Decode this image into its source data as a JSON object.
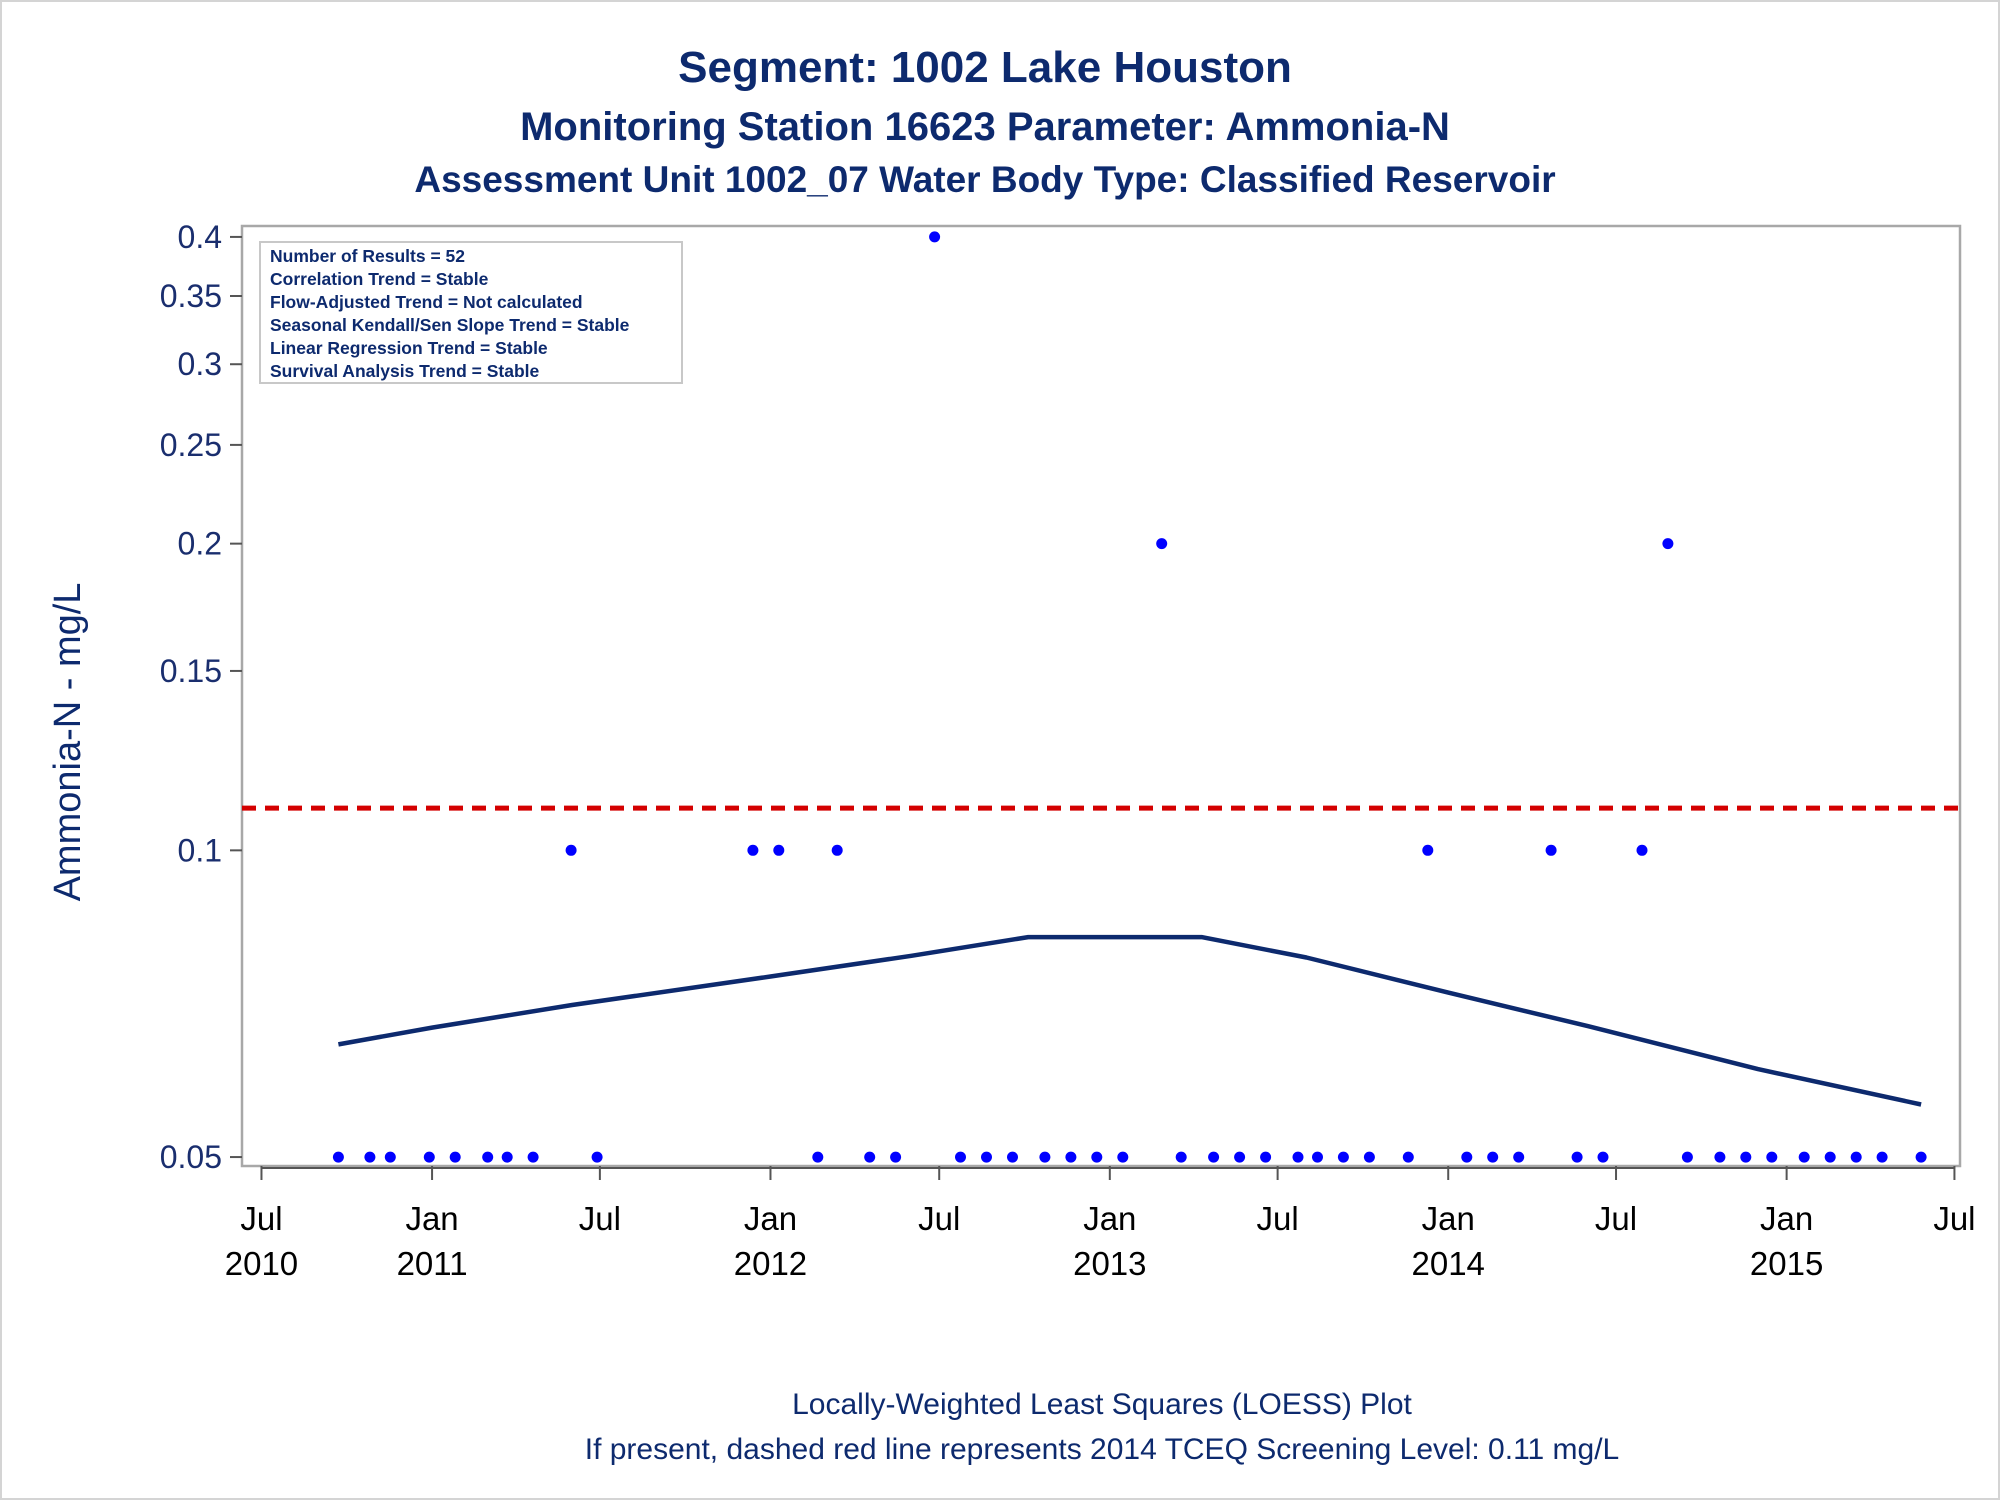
{
  "chart_data": {
    "type": "scatter",
    "title": "Segment: 1002  Lake Houston",
    "subtitle": "Monitoring Station 16623 Parameter: Ammonia-N",
    "subtitle2": "Assessment Unit 1002_07   Water Body Type: Classified Reservoir",
    "ylabel": "Ammonia-N - mg/L",
    "yscale": "log",
    "ylim": [
      0.049,
      0.41
    ],
    "xlim": [
      "2010-06-10",
      "2015-07-07"
    ],
    "yticks": [
      {
        "value": 0.05,
        "label": "0.05"
      },
      {
        "value": 0.1,
        "label": "0.1"
      },
      {
        "value": 0.15,
        "label": "0.15"
      },
      {
        "value": 0.2,
        "label": "0.2"
      },
      {
        "value": 0.25,
        "label": "0.25"
      },
      {
        "value": 0.3,
        "label": "0.3"
      },
      {
        "value": 0.35,
        "label": "0.35"
      },
      {
        "value": 0.4,
        "label": "0.4"
      }
    ],
    "xticks": [
      {
        "date": "2010-07-01",
        "month": "Jul",
        "year": "2010"
      },
      {
        "date": "2011-01-01",
        "month": "Jan",
        "year": "2011"
      },
      {
        "date": "2011-07-01",
        "month": "Jul",
        "year": ""
      },
      {
        "date": "2012-01-01",
        "month": "Jan",
        "year": "2012"
      },
      {
        "date": "2012-07-01",
        "month": "Jul",
        "year": ""
      },
      {
        "date": "2013-01-01",
        "month": "Jan",
        "year": "2013"
      },
      {
        "date": "2013-07-01",
        "month": "Jul",
        "year": ""
      },
      {
        "date": "2014-01-01",
        "month": "Jan",
        "year": "2014"
      },
      {
        "date": "2014-07-01",
        "month": "Jul",
        "year": ""
      },
      {
        "date": "2015-01-01",
        "month": "Jan",
        "year": "2015"
      },
      {
        "date": "2015-07-01",
        "month": "Jul",
        "year": ""
      }
    ],
    "points": [
      {
        "date": "2010-09-22",
        "value": 0.05
      },
      {
        "date": "2010-10-26",
        "value": 0.05
      },
      {
        "date": "2010-11-17",
        "value": 0.05
      },
      {
        "date": "2010-12-29",
        "value": 0.05
      },
      {
        "date": "2011-01-26",
        "value": 0.05
      },
      {
        "date": "2011-03-02",
        "value": 0.05
      },
      {
        "date": "2011-03-23",
        "value": 0.05
      },
      {
        "date": "2011-04-20",
        "value": 0.05
      },
      {
        "date": "2011-05-31",
        "value": 0.1
      },
      {
        "date": "2011-06-28",
        "value": 0.05
      },
      {
        "date": "2011-12-13",
        "value": 0.1
      },
      {
        "date": "2012-01-10",
        "value": 0.1
      },
      {
        "date": "2012-02-21",
        "value": 0.05
      },
      {
        "date": "2012-03-13",
        "value": 0.1
      },
      {
        "date": "2012-04-17",
        "value": 0.05
      },
      {
        "date": "2012-05-15",
        "value": 0.05
      },
      {
        "date": "2012-06-26",
        "value": 0.4
      },
      {
        "date": "2012-07-24",
        "value": 0.05
      },
      {
        "date": "2012-08-21",
        "value": 0.05
      },
      {
        "date": "2012-09-18",
        "value": 0.05
      },
      {
        "date": "2012-10-23",
        "value": 0.05
      },
      {
        "date": "2012-11-20",
        "value": 0.05
      },
      {
        "date": "2012-12-18",
        "value": 0.05
      },
      {
        "date": "2013-01-15",
        "value": 0.05
      },
      {
        "date": "2013-02-26",
        "value": 0.2
      },
      {
        "date": "2013-03-19",
        "value": 0.05
      },
      {
        "date": "2013-04-23",
        "value": 0.05
      },
      {
        "date": "2013-05-21",
        "value": 0.05
      },
      {
        "date": "2013-06-18",
        "value": 0.05
      },
      {
        "date": "2013-07-23",
        "value": 0.05
      },
      {
        "date": "2013-08-13",
        "value": 0.05
      },
      {
        "date": "2013-09-10",
        "value": 0.05
      },
      {
        "date": "2013-10-08",
        "value": 0.05
      },
      {
        "date": "2013-11-19",
        "value": 0.05
      },
      {
        "date": "2013-12-10",
        "value": 0.1
      },
      {
        "date": "2014-01-21",
        "value": 0.05
      },
      {
        "date": "2014-02-18",
        "value": 0.05
      },
      {
        "date": "2014-03-18",
        "value": 0.05
      },
      {
        "date": "2014-04-22",
        "value": 0.1
      },
      {
        "date": "2014-05-20",
        "value": 0.05
      },
      {
        "date": "2014-06-17",
        "value": 0.05
      },
      {
        "date": "2014-07-29",
        "value": 0.1
      },
      {
        "date": "2014-08-26",
        "value": 0.2
      },
      {
        "date": "2014-09-16",
        "value": 0.05
      },
      {
        "date": "2014-10-21",
        "value": 0.05
      },
      {
        "date": "2014-11-18",
        "value": 0.05
      },
      {
        "date": "2014-12-16",
        "value": 0.05
      },
      {
        "date": "2015-01-20",
        "value": 0.05
      },
      {
        "date": "2015-02-17",
        "value": 0.05
      },
      {
        "date": "2015-03-17",
        "value": 0.05
      },
      {
        "date": "2015-04-14",
        "value": 0.05
      },
      {
        "date": "2015-05-26",
        "value": 0.05
      }
    ],
    "loess": [
      {
        "date": "2010-09-22",
        "value": 0.0645
      },
      {
        "date": "2011-01-01",
        "value": 0.067
      },
      {
        "date": "2011-06-01",
        "value": 0.0705
      },
      {
        "date": "2012-01-01",
        "value": 0.0752
      },
      {
        "date": "2012-06-01",
        "value": 0.0788
      },
      {
        "date": "2012-10-05",
        "value": 0.0822
      },
      {
        "date": "2013-04-10",
        "value": 0.0822
      },
      {
        "date": "2013-08-01",
        "value": 0.0785
      },
      {
        "date": "2014-01-01",
        "value": 0.0725
      },
      {
        "date": "2014-06-01",
        "value": 0.0672
      },
      {
        "date": "2014-12-01",
        "value": 0.061
      },
      {
        "date": "2015-05-26",
        "value": 0.0563
      }
    ],
    "screening_level": {
      "value": 0.11,
      "color": "#d40000",
      "style": "dashed"
    },
    "point_color": "#0000ff",
    "line_color": "#0d2a6e",
    "stats_box": {
      "placement": "top-left",
      "lines": [
        "Number of Results = 52",
        "Correlation Trend = Stable",
        "Flow-Adjusted Trend = Not calculated",
        "Seasonal Kendall/Sen Slope Trend = Stable",
        "Linear Regression Trend = Stable",
        "Survival Analysis Trend = Stable"
      ]
    },
    "footnotes": [
      "Locally-Weighted Least Squares (LOESS) Plot",
      "If present, dashed red line represents 2014 TCEQ Screening Level: 0.11 mg/L"
    ],
    "grid": false
  }
}
